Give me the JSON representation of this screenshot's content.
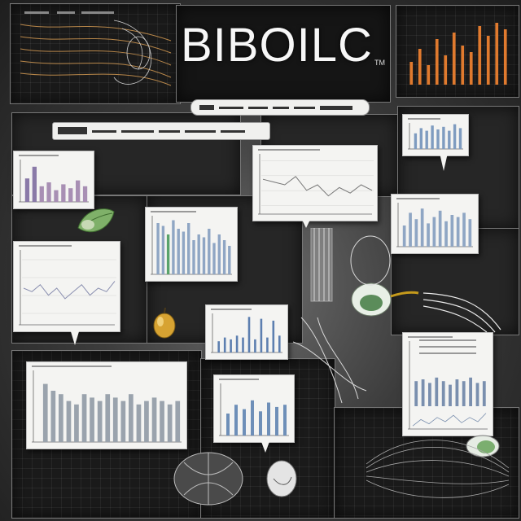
{
  "poster": {
    "title": "BIBOILC",
    "title_mark": "TM"
  },
  "colors": {
    "background": "#3a3a3a",
    "panel": "#1a1a1a",
    "card": "#f4f4f2",
    "bar_blue": "#8fa6c4",
    "bar_orange": "#e07a2e",
    "bar_purple": "#8a7aa8",
    "bar_green": "#5aa36b"
  },
  "icons": [
    "leaf-illustration",
    "fruit-illustration",
    "seed-illustration",
    "nut-illustration",
    "plant-sketch",
    "root-sketch"
  ],
  "charts": {
    "top_right_bars": [
      0.35,
      0.55,
      0.3,
      0.7,
      0.45,
      0.8,
      0.6,
      0.5,
      0.9,
      0.75,
      0.95,
      0.85
    ],
    "left_small_bars": [
      0.6,
      0.9,
      0.4,
      0.5,
      0.3,
      0.45,
      0.35,
      0.55,
      0.4
    ],
    "center_bars": [
      0.9,
      0.85,
      0.7,
      0.95,
      0.8,
      0.75,
      0.9,
      0.6,
      0.7,
      0.65,
      0.8,
      0.55,
      0.7,
      0.6,
      0.5
    ],
    "right_mid_bars": [
      0.5,
      0.8,
      0.65,
      0.9,
      0.55,
      0.7,
      0.85,
      0.6,
      0.75,
      0.7,
      0.8,
      0.65
    ],
    "bottom_left_bars": [
      0.85,
      0.75,
      0.7,
      0.6,
      0.55,
      0.7,
      0.65,
      0.6,
      0.7,
      0.65,
      0.6,
      0.7,
      0.55,
      0.6,
      0.65,
      0.6,
      0.55,
      0.6
    ],
    "mid_lower_bars": [
      0.3,
      0.4,
      0.35,
      0.45,
      0.4,
      0.95,
      0.35,
      0.9,
      0.4,
      0.85,
      0.45
    ],
    "bottom_center_bars": [
      0.5,
      0.7,
      0.6,
      0.8,
      0.55,
      0.75,
      0.65,
      0.7
    ],
    "right_lower_bars": [
      0.7,
      0.75,
      0.65,
      0.8,
      0.7,
      0.6,
      0.75,
      0.7,
      0.8,
      0.65,
      0.7
    ],
    "top_right_card_bars": [
      0.6,
      0.8,
      0.7,
      0.9,
      0.75,
      0.85,
      0.7,
      0.95,
      0.8
    ],
    "center_top_line": [
      0.6,
      0.55,
      0.5,
      0.65,
      0.4,
      0.5,
      0.3,
      0.45,
      0.35,
      0.5,
      0.4
    ],
    "left_mid_line": [
      0.5,
      0.45,
      0.55,
      0.4,
      0.5,
      0.35,
      0.45,
      0.55,
      0.4,
      0.5,
      0.45,
      0.6
    ]
  }
}
